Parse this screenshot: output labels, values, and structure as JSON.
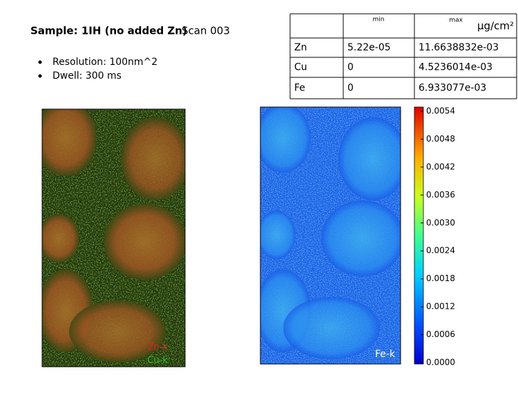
{
  "header": {
    "title": "Sample: 1IH (no added Zn)",
    "scan": "Scan 003"
  },
  "bullets": [
    "Resolution: 100nm^2",
    "Dwell: 300 ms"
  ],
  "table": {
    "header": [
      "",
      "min",
      "max",
      "μg/cm²"
    ],
    "rows": [
      [
        "Zn",
        "5.22e-05",
        "11.6638832e-03"
      ],
      [
        "Cu",
        "0",
        "4.5236014e-03"
      ],
      [
        "Fe",
        "0",
        "6.933077e-03"
      ]
    ]
  },
  "left_image": {
    "labels": [
      "Zn-k",
      "Cu-k"
    ]
  },
  "right_image": {
    "label": "Fe-k"
  },
  "colorbar": {
    "ticks": [
      "0.0054",
      "0.0048",
      "0.0042",
      "0.0036",
      "0.0030",
      "0.0024",
      "0.0018",
      "0.0012",
      "0.0006",
      "0.0000"
    ]
  }
}
